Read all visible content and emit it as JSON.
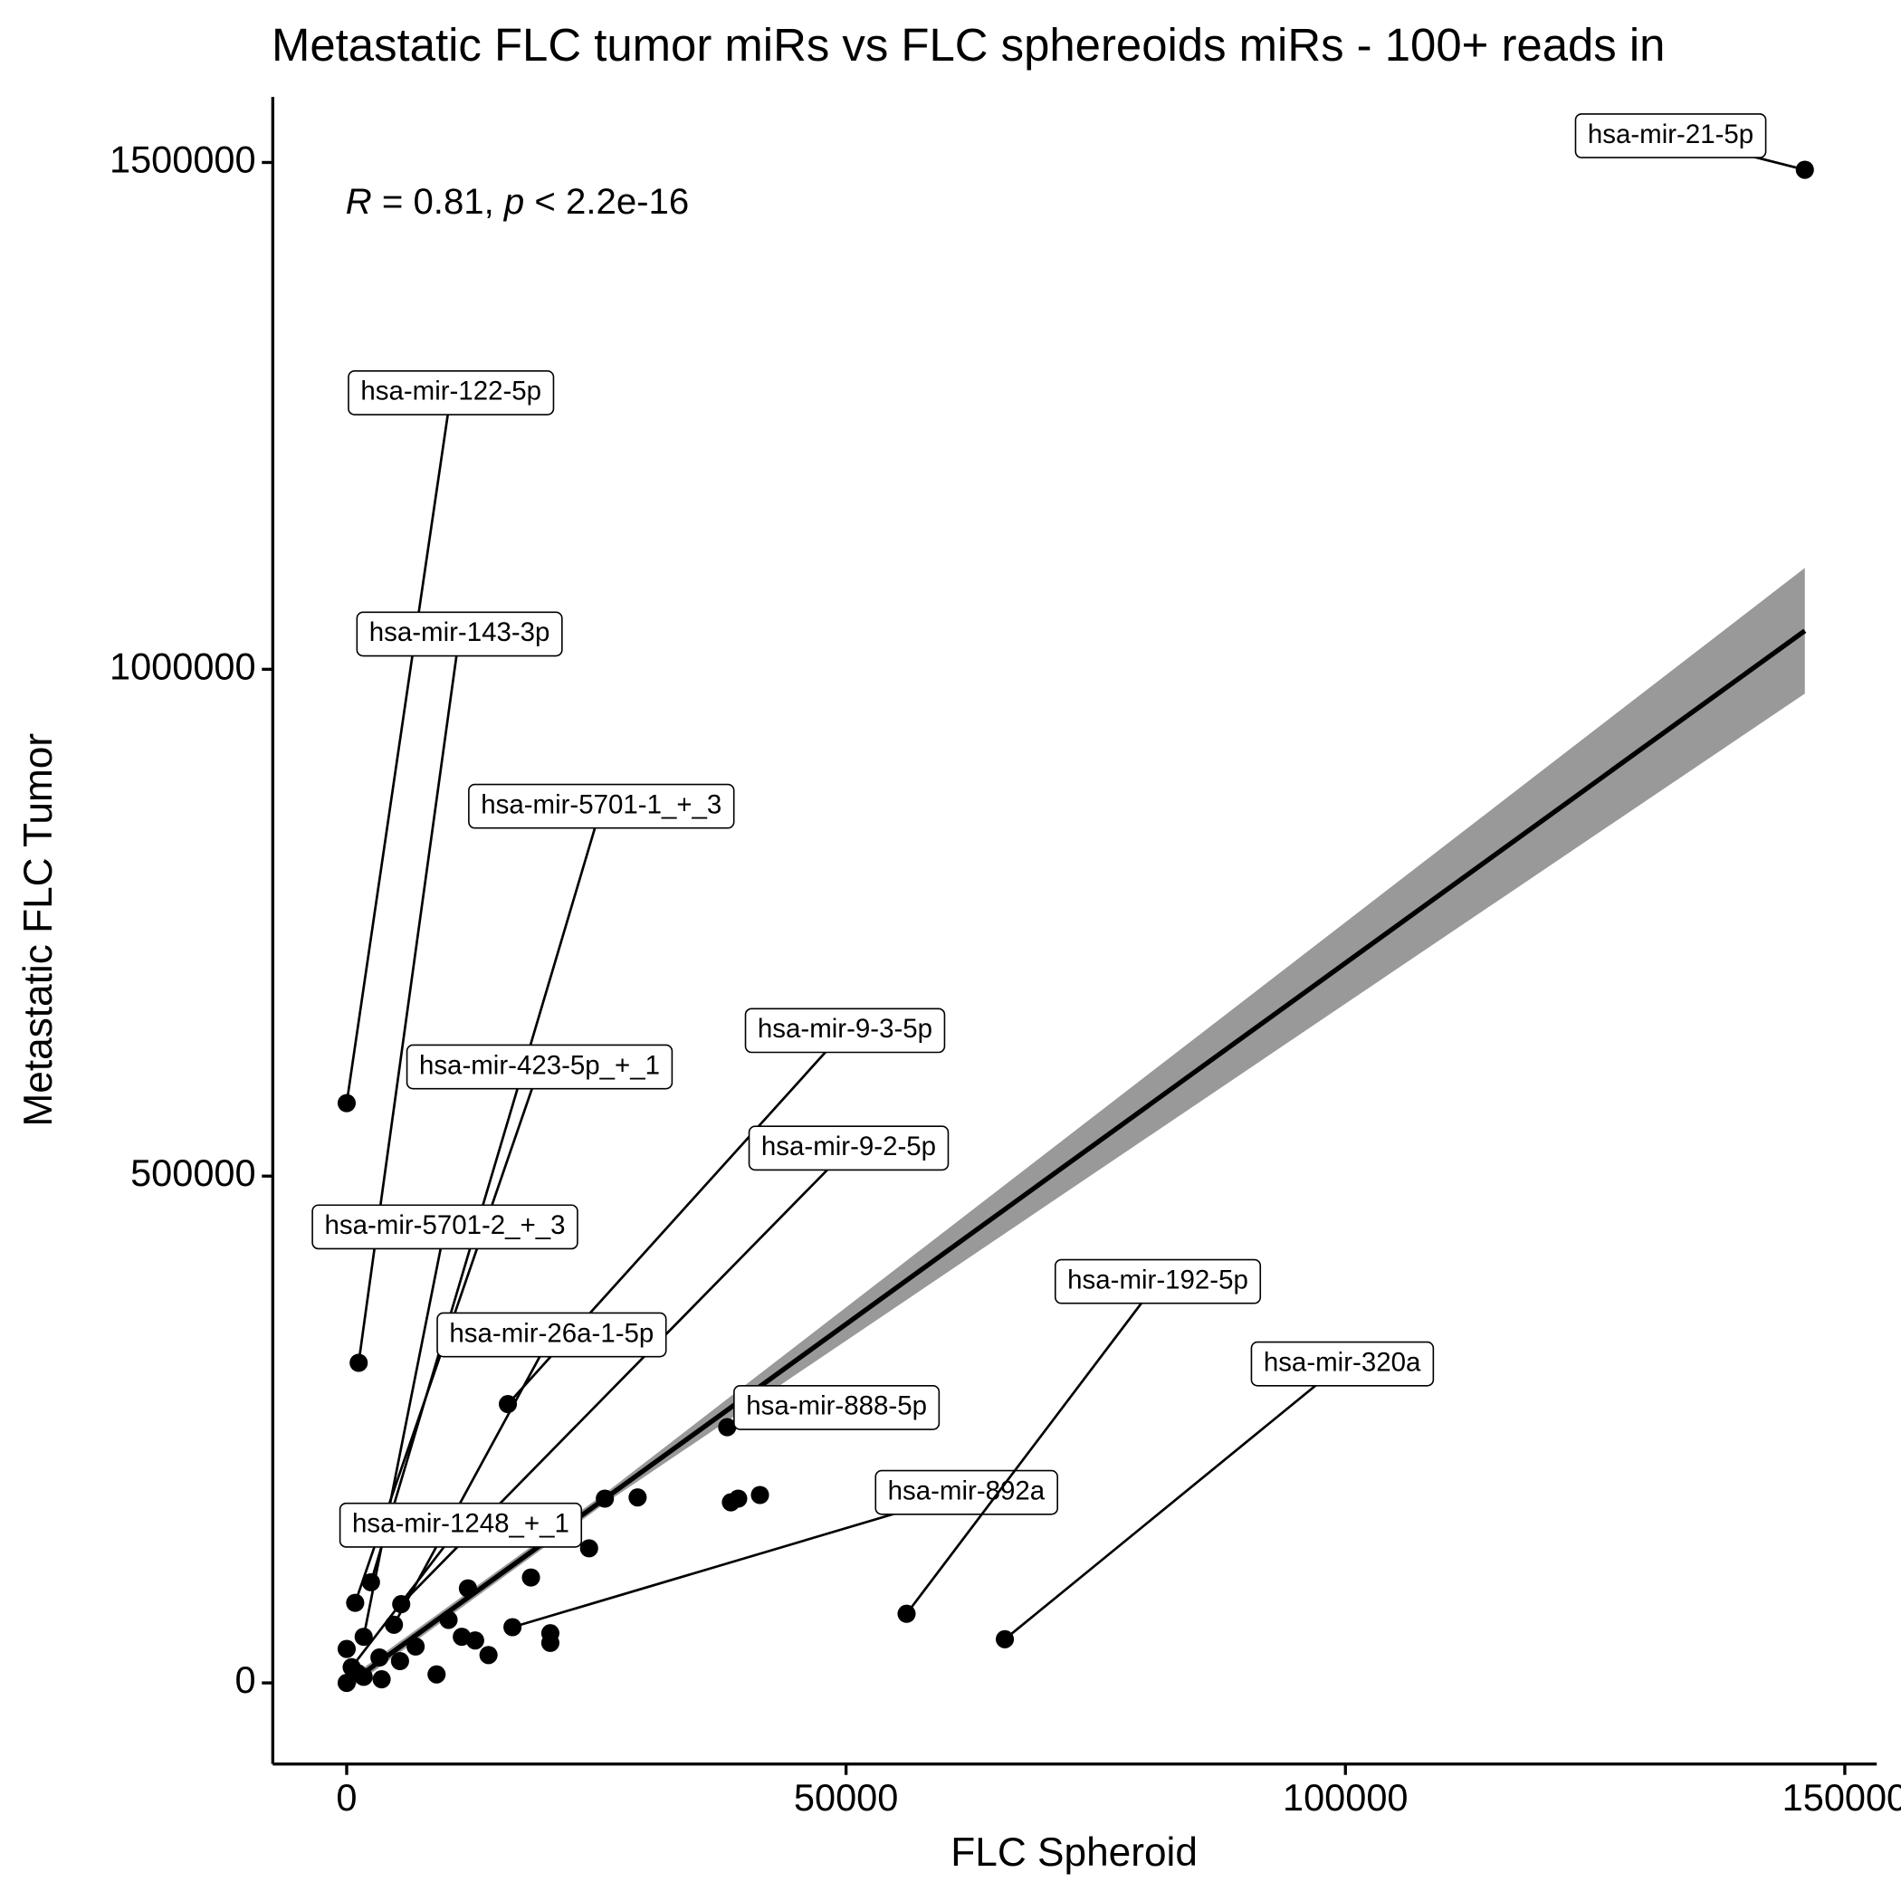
{
  "chart_data": {
    "type": "scatter",
    "title": "Metastatic FLC tumor miRs vs FLC sphereoids miRs - 100+ reads in",
    "x_label": "FLC Spheroid",
    "y_label": "Metastatic FLC Tumor",
    "annotation": [
      "R",
      " = 0.81, ",
      "p",
      " < 2.2e-16"
    ],
    "xlim": [
      -7400,
      153200
    ],
    "ylim": [
      -80000,
      1564600
    ],
    "xticks": [
      0,
      50000,
      100000,
      150000
    ],
    "yticks": [
      0,
      500000,
      1000000,
      1500000
    ],
    "grid": false,
    "color": "#000000",
    "points": {
      "x": [
        146000,
        0,
        1200,
        2430,
        850,
        16140,
        5460,
        1700,
        4730,
        38100,
        16600,
        500,
        56060,
        65900,
        25850,
        29130,
        38470,
        39200,
        41380,
        24270,
        18450,
        12140,
        10200,
        20390,
        20390,
        11530,
        12860,
        14200,
        9000,
        6900,
        0,
        3280,
        0,
        1700,
        5340,
        3500,
        1100
      ],
      "y": [
        1492800,
        572000,
        315800,
        99300,
        79000,
        275100,
        77700,
        45500,
        57400,
        252300,
        55000,
        15500,
        68200,
        43100,
        181800,
        183000,
        178200,
        181800,
        185400,
        132800,
        104000,
        93300,
        62200,
        49000,
        39500,
        45500,
        41900,
        27500,
        8400,
        35900,
        33500,
        25100,
        0,
        6000,
        21500,
        3600,
        9600
      ],
      "labels": [
        "hsa-mir-21-5p",
        "hsa-mir-122-5p",
        "hsa-mir-143-3p",
        "hsa-mir-5701-1_+_3",
        "hsa-mir-423-5p_+_1",
        "hsa-mir-9-3-5p",
        "hsa-mir-9-2-5p",
        "hsa-mir-5701-2_+_3",
        "hsa-mir-26a-1-5p",
        "hsa-mir-888-5p",
        "hsa-mir-892a",
        "hsa-mir-1248_+_1",
        "hsa-mir-192-5p",
        "hsa-mir-320a",
        null,
        null,
        null,
        null,
        null,
        null,
        null,
        null,
        null,
        null,
        null,
        null,
        null,
        null,
        null,
        null,
        null,
        null,
        null,
        null,
        null,
        null,
        null
      ]
    },
    "fit": {
      "x": [
        0,
        146000
      ],
      "y": [
        -2400,
        1038000
      ],
      "color": "#000000"
    },
    "band": {
      "x": [
        0,
        25850,
        146000
      ],
      "lower": [
        -8000,
        177000,
        976000
      ],
      "upper": [
        3000,
        187000,
        1100000
      ],
      "color": "#999999"
    }
  }
}
